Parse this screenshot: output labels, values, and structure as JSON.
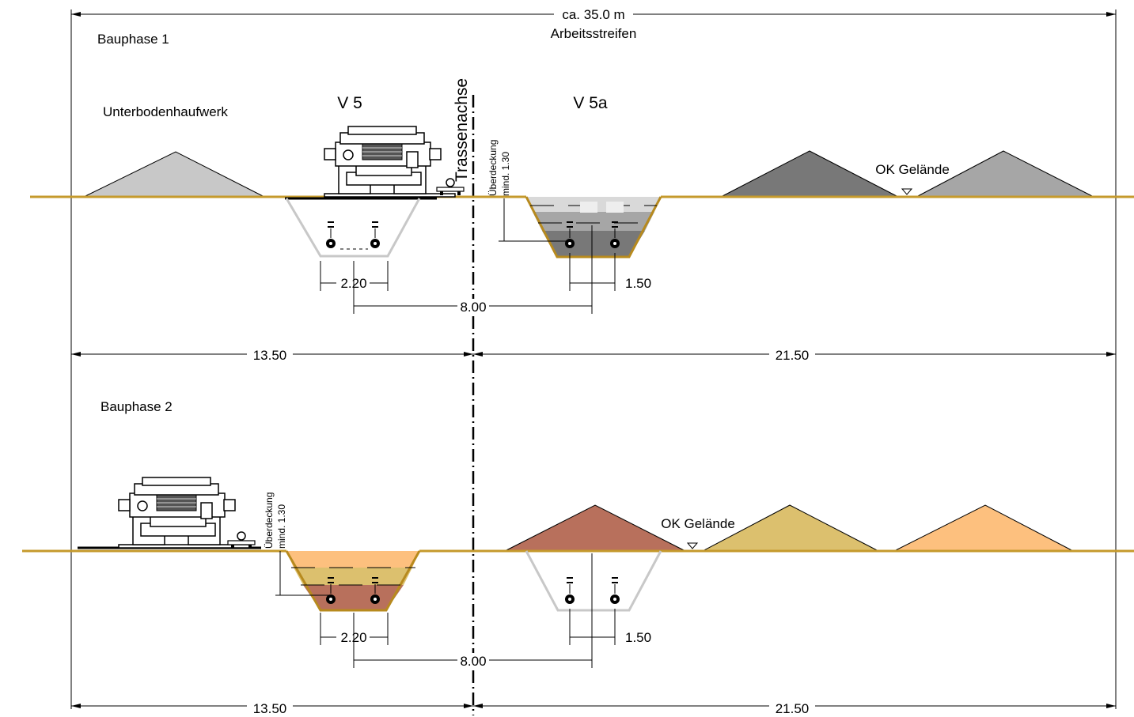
{
  "top": {
    "width_label": "ca. 35.0 m",
    "strip_label": "Arbeitsstreifen"
  },
  "axis_label": "Trassenachse",
  "phase1": {
    "title": "Bauphase 1",
    "pile_label": "Unterbodenhaufwerk",
    "pipe_left_label": "V 5",
    "pipe_right_label": "V 5a",
    "ground_label": "OK Gelände",
    "cover_label_1": "Überdeckung",
    "cover_label_2": "mind. 1.30",
    "dim_left_trench": "2.20",
    "dim_right_trench": "1.50",
    "dim_spacing": "8.00",
    "dim_left_total": "13.50",
    "dim_right_total": "21.50",
    "colors": {
      "pile_topsoil": "#c8c8c8",
      "pile_dark": "#787878",
      "pile_mid": "#a6a6a6",
      "fill_light": "#d9d9d9",
      "fill_mid": "#a6a6a6",
      "fill_dark": "#787878"
    }
  },
  "phase2": {
    "title": "Bauphase 2",
    "ground_label": "OK Gelände",
    "cover_label_1": "Überdeckung",
    "cover_label_2": "mind. 1.30",
    "dim_left_trench": "2.20",
    "dim_right_trench": "1.50",
    "dim_spacing": "8.00",
    "dim_left_total": "13.50",
    "dim_right_total": "21.50",
    "colors": {
      "pile_brown": "#b8705c",
      "pile_ochre": "#dcc06e",
      "pile_orange": "#fdc07e",
      "fill_light": "#fdc07e",
      "fill_mid": "#dcc06e",
      "fill_dark": "#b8705c"
    }
  }
}
